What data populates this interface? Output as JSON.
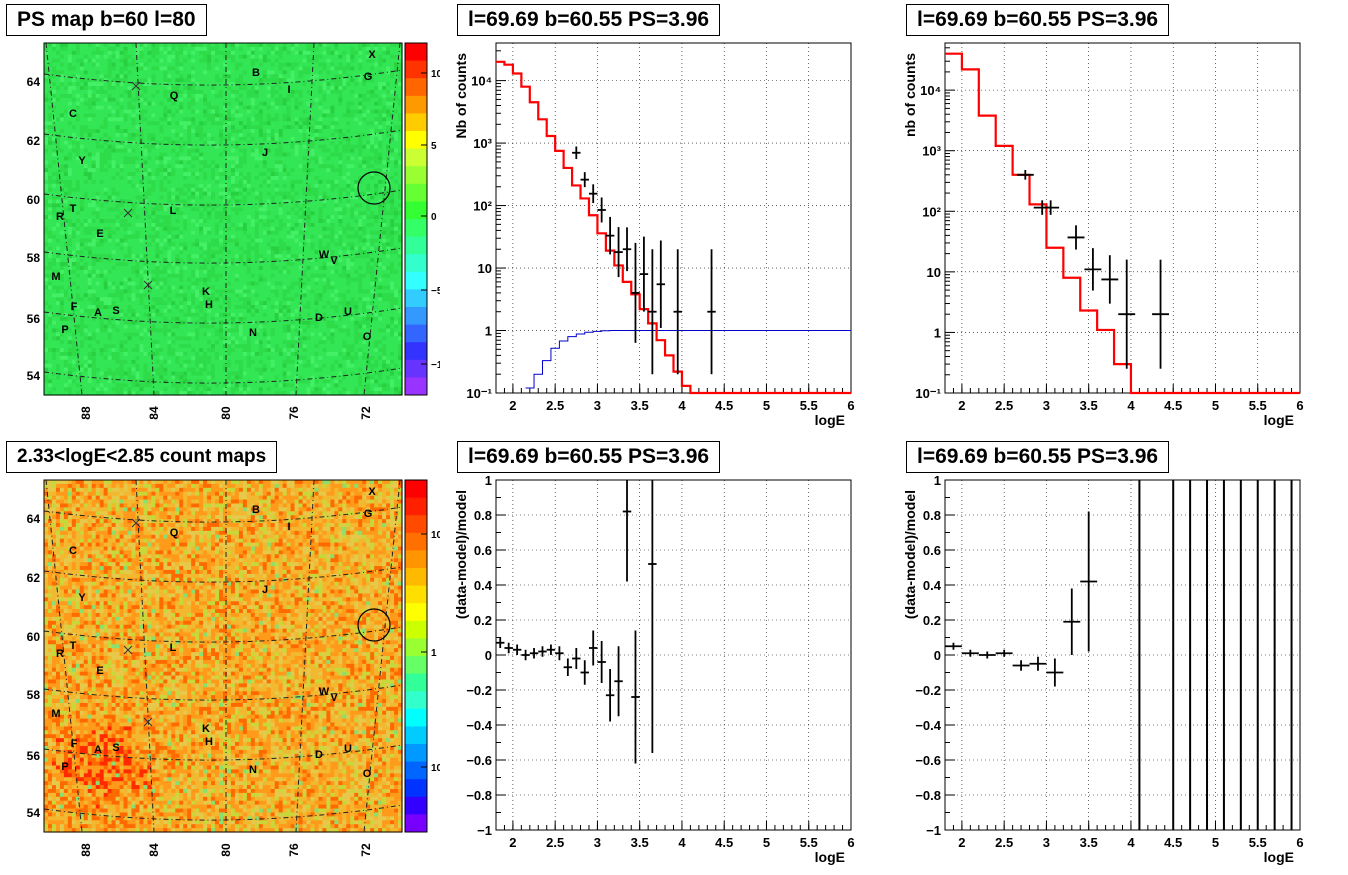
{
  "panels": {
    "ps_map": {
      "title": "PS map b=60 l=80",
      "x_ticks": [
        "88",
        "84",
        "80",
        "76",
        "72"
      ],
      "y_ticks": [
        "54",
        "56",
        "58",
        "60",
        "62",
        "64"
      ],
      "colorbar_ticks": [
        "10",
        "5",
        "0",
        "−5",
        "−10"
      ],
      "sources": [
        "X",
        "G",
        "B",
        "I",
        "Q",
        "C",
        "J",
        "Y",
        "T",
        "R",
        "L",
        "E",
        "M",
        "W",
        "V",
        "K",
        "H",
        "F",
        "A",
        "S",
        "P",
        "N",
        "D",
        "U",
        "O"
      ]
    },
    "count_map": {
      "title": "2.33<logE<2.85 count maps",
      "x_ticks": [
        "88",
        "84",
        "80",
        "76",
        "72"
      ],
      "y_ticks": [
        "54",
        "56",
        "58",
        "60",
        "62",
        "64"
      ],
      "colorbar_ticks": [
        "10",
        "1",
        "10⁻¹"
      ]
    },
    "spec1": {
      "title": "l=69.69 b=60.55 PS=3.96",
      "xlabel": "logE",
      "ylabel": "Nb of counts"
    },
    "spec2": {
      "title": "l=69.69 b=60.55 PS=3.96",
      "xlabel": "logE",
      "ylabel": "nb of counts"
    },
    "res1": {
      "title": "l=69.69 b=60.55 PS=3.96",
      "xlabel": "logE",
      "ylabel": "(data-model)/model"
    },
    "res2": {
      "title": "l=69.69 b=60.55 PS=3.96",
      "xlabel": "logE",
      "ylabel": "(data-model)/model"
    }
  },
  "colors": {
    "model": "#ff0000",
    "data": "#000000",
    "efficiency": "#0000cc",
    "grid": "#000000"
  },
  "chart_data": [
    {
      "id": "spec1",
      "type": "line",
      "title": "l=69.69 b=60.55 PS=3.96",
      "xlabel": "logE",
      "ylabel": "Nb of counts",
      "xlim": [
        1.8,
        6
      ],
      "ylim": [
        0.1,
        40000
      ],
      "yscale": "log",
      "x_ticks": [
        "2",
        "2.5",
        "3",
        "3.5",
        "4",
        "4.5",
        "5",
        "5.5",
        "6"
      ],
      "y_ticks": [
        "10⁻¹",
        "1",
        "10",
        "10²",
        "10³",
        "10⁴"
      ],
      "grid": true,
      "model_step": {
        "edges": [
          1.8,
          1.9,
          2.0,
          2.1,
          2.2,
          2.3,
          2.4,
          2.5,
          2.6,
          2.7,
          2.8,
          2.9,
          3.0,
          3.1,
          3.2,
          3.3,
          3.4,
          3.5,
          3.6,
          3.7,
          3.8,
          3.9,
          4.0,
          4.1,
          4.2,
          6.0
        ],
        "values": [
          20000,
          18000,
          13000,
          8000,
          4500,
          2400,
          1300,
          750,
          400,
          210,
          130,
          70,
          36,
          19,
          11,
          6,
          3.8,
          2.2,
          1.3,
          0.7,
          0.4,
          0.22,
          0.13,
          0.1,
          0.1
        ]
      },
      "efficiency_step": {
        "edges": [
          2.15,
          2.25,
          2.35,
          2.45,
          2.55,
          2.65,
          2.75,
          2.85,
          2.95,
          3.05,
          3.15,
          3.25,
          6.0
        ],
        "values": [
          0.12,
          0.2,
          0.33,
          0.52,
          0.68,
          0.8,
          0.88,
          0.94,
          0.97,
          0.99,
          1.0,
          1.0
        ]
      },
      "data_points": [
        {
          "x": 2.75,
          "y": 700,
          "xerr": 0.05,
          "yerr": [
            0.1,
            0.1
          ]
        },
        {
          "x": 2.85,
          "y": 260,
          "xerr": 0.05,
          "yerr": [
            0.12,
            0.12
          ]
        },
        {
          "x": 2.95,
          "y": 155,
          "xerr": 0.05,
          "yerr": [
            0.15,
            0.15
          ]
        },
        {
          "x": 3.05,
          "y": 85,
          "xerr": 0.05,
          "yerr": [
            0.2,
            0.2
          ]
        },
        {
          "x": 3.15,
          "y": 33,
          "xerr": 0.05,
          "yerr": [
            0.3,
            0.3
          ]
        },
        {
          "x": 3.25,
          "y": 18,
          "xerr": 0.05,
          "yerr": [
            0.4,
            0.4
          ]
        },
        {
          "x": 3.35,
          "y": 20,
          "xerr": 0.05,
          "yerr": [
            0.35,
            0.35
          ]
        },
        {
          "x": 3.45,
          "y": 4,
          "xerr": 0.05,
          "yerr": [
            0.8,
            0.8
          ]
        },
        {
          "x": 3.55,
          "y": 8,
          "xerr": 0.05,
          "yerr": [
            0.6,
            0.6
          ]
        },
        {
          "x": 3.65,
          "y": 2,
          "xerr": 0.05,
          "yerr": [
            1.0,
            1.0
          ]
        },
        {
          "x": 3.75,
          "y": 5.5,
          "xerr": 0.05,
          "yerr": [
            0.7,
            0.7
          ]
        },
        {
          "x": 3.95,
          "y": 2,
          "xerr": 0.05,
          "yerr": [
            1.0,
            1.0
          ]
        },
        {
          "x": 4.35,
          "y": 2,
          "xerr": 0.05,
          "yerr": [
            1.0,
            1.0
          ]
        }
      ]
    },
    {
      "id": "spec2",
      "type": "line",
      "title": "l=69.69 b=60.55 PS=3.96",
      "xlabel": "logE",
      "ylabel": "nb of counts",
      "xlim": [
        1.8,
        6
      ],
      "ylim": [
        0.1,
        60000
      ],
      "yscale": "log",
      "x_ticks": [
        "2",
        "2.5",
        "3",
        "3.5",
        "4",
        "4.5",
        "5",
        "5.5",
        "6"
      ],
      "y_ticks": [
        "10⁻¹",
        "1",
        "10",
        "10²",
        "10³",
        "10⁴"
      ],
      "grid": true,
      "model_step": {
        "edges": [
          1.8,
          2.0,
          2.2,
          2.4,
          2.6,
          2.8,
          3.0,
          3.2,
          3.4,
          3.6,
          3.8,
          4.0,
          4.2,
          6.0
        ],
        "values": [
          40000,
          22000,
          3800,
          1200,
          400,
          130,
          25,
          8,
          2.3,
          1.1,
          0.3,
          0.1,
          0.1
        ]
      },
      "data_points": [
        {
          "x": 2.75,
          "y": 400,
          "xerr": 0.1,
          "yerr": [
            0.08,
            0.08
          ]
        },
        {
          "x": 2.95,
          "y": 115,
          "xerr": 0.1,
          "yerr": [
            0.12,
            0.12
          ]
        },
        {
          "x": 3.05,
          "y": 115,
          "xerr": 0.1,
          "yerr": [
            0.12,
            0.12
          ]
        },
        {
          "x": 3.35,
          "y": 37,
          "xerr": 0.1,
          "yerr": [
            0.2,
            0.2
          ]
        },
        {
          "x": 3.55,
          "y": 11,
          "xerr": 0.1,
          "yerr": [
            0.35,
            0.35
          ]
        },
        {
          "x": 3.75,
          "y": 7.5,
          "xerr": 0.1,
          "yerr": [
            0.4,
            0.4
          ]
        },
        {
          "x": 3.95,
          "y": 2,
          "xerr": 0.1,
          "yerr": [
            0.9,
            0.9
          ]
        },
        {
          "x": 4.35,
          "y": 2,
          "xerr": 0.1,
          "yerr": [
            0.9,
            0.9
          ]
        }
      ]
    },
    {
      "id": "res1",
      "type": "scatter",
      "title": "l=69.69 b=60.55 PS=3.96",
      "xlabel": "logE",
      "ylabel": "(data-model)/model",
      "xlim": [
        1.8,
        6
      ],
      "ylim": [
        -1,
        1
      ],
      "x_ticks": [
        "2",
        "2.5",
        "3",
        "3.5",
        "4",
        "4.5",
        "5",
        "5.5",
        "6"
      ],
      "y_ticks": [
        "−1",
        "−0.8",
        "−0.6",
        "−0.4",
        "−0.2",
        "0",
        "0.2",
        "0.4",
        "0.6",
        "0.8",
        "1"
      ],
      "grid": true,
      "data_points": [
        {
          "x": 1.85,
          "y": 0.07,
          "xerr": 0.05,
          "yerr": 0.03
        },
        {
          "x": 1.95,
          "y": 0.04,
          "xerr": 0.05,
          "yerr": 0.03
        },
        {
          "x": 2.05,
          "y": 0.03,
          "xerr": 0.05,
          "yerr": 0.03
        },
        {
          "x": 2.15,
          "y": 0.0,
          "xerr": 0.05,
          "yerr": 0.03
        },
        {
          "x": 2.25,
          "y": 0.01,
          "xerr": 0.05,
          "yerr": 0.03
        },
        {
          "x": 2.35,
          "y": 0.02,
          "xerr": 0.05,
          "yerr": 0.03
        },
        {
          "x": 2.45,
          "y": 0.03,
          "xerr": 0.05,
          "yerr": 0.03
        },
        {
          "x": 2.55,
          "y": 0.01,
          "xerr": 0.05,
          "yerr": 0.04
        },
        {
          "x": 2.65,
          "y": -0.07,
          "xerr": 0.05,
          "yerr": 0.05
        },
        {
          "x": 2.75,
          "y": -0.02,
          "xerr": 0.05,
          "yerr": 0.06
        },
        {
          "x": 2.85,
          "y": -0.1,
          "xerr": 0.05,
          "yerr": 0.07
        },
        {
          "x": 2.95,
          "y": 0.04,
          "xerr": 0.05,
          "yerr": 0.1
        },
        {
          "x": 3.05,
          "y": -0.04,
          "xerr": 0.05,
          "yerr": 0.12
        },
        {
          "x": 3.15,
          "y": -0.23,
          "xerr": 0.05,
          "yerr": 0.15
        },
        {
          "x": 3.25,
          "y": -0.15,
          "xerr": 0.05,
          "yerr": 0.2
        },
        {
          "x": 3.35,
          "y": 0.82,
          "xerr": 0.05,
          "yerr": 0.4
        },
        {
          "x": 3.45,
          "y": -0.24,
          "xerr": 0.05,
          "yerr": 0.38
        },
        {
          "x": 3.65,
          "y": 0.52,
          "xerr": 0.05,
          "yerr": 1.08
        }
      ]
    },
    {
      "id": "res2",
      "type": "scatter",
      "title": "l=69.69 b=60.55 PS=3.96",
      "xlabel": "logE",
      "ylabel": "(data-model)/model",
      "xlim": [
        1.8,
        6
      ],
      "ylim": [
        -1,
        1
      ],
      "x_ticks": [
        "2",
        "2.5",
        "3",
        "3.5",
        "4",
        "4.5",
        "5",
        "5.5",
        "6"
      ],
      "y_ticks": [
        "−1",
        "−0.8",
        "−0.6",
        "−0.4",
        "−0.2",
        "0",
        "0.2",
        "0.4",
        "0.6",
        "0.8",
        "1"
      ],
      "grid": true,
      "data_points": [
        {
          "x": 1.9,
          "y": 0.05,
          "xerr": 0.1,
          "yerr": 0.02
        },
        {
          "x": 2.1,
          "y": 0.01,
          "xerr": 0.1,
          "yerr": 0.02
        },
        {
          "x": 2.3,
          "y": 0.0,
          "xerr": 0.1,
          "yerr": 0.02
        },
        {
          "x": 2.5,
          "y": 0.01,
          "xerr": 0.1,
          "yerr": 0.02
        },
        {
          "x": 2.7,
          "y": -0.06,
          "xerr": 0.1,
          "yerr": 0.03
        },
        {
          "x": 2.9,
          "y": -0.05,
          "xerr": 0.1,
          "yerr": 0.04
        },
        {
          "x": 3.1,
          "y": -0.1,
          "xerr": 0.1,
          "yerr": 0.08
        },
        {
          "x": 3.3,
          "y": 0.19,
          "xerr": 0.1,
          "yerr": 0.19
        },
        {
          "x": 3.5,
          "y": 0.42,
          "xerr": 0.1,
          "yerr": 0.4
        }
      ],
      "vertical_lines_x": [
        4.1,
        4.5,
        4.7,
        4.9,
        5.1,
        5.3,
        5.5,
        5.7,
        5.9
      ]
    }
  ]
}
